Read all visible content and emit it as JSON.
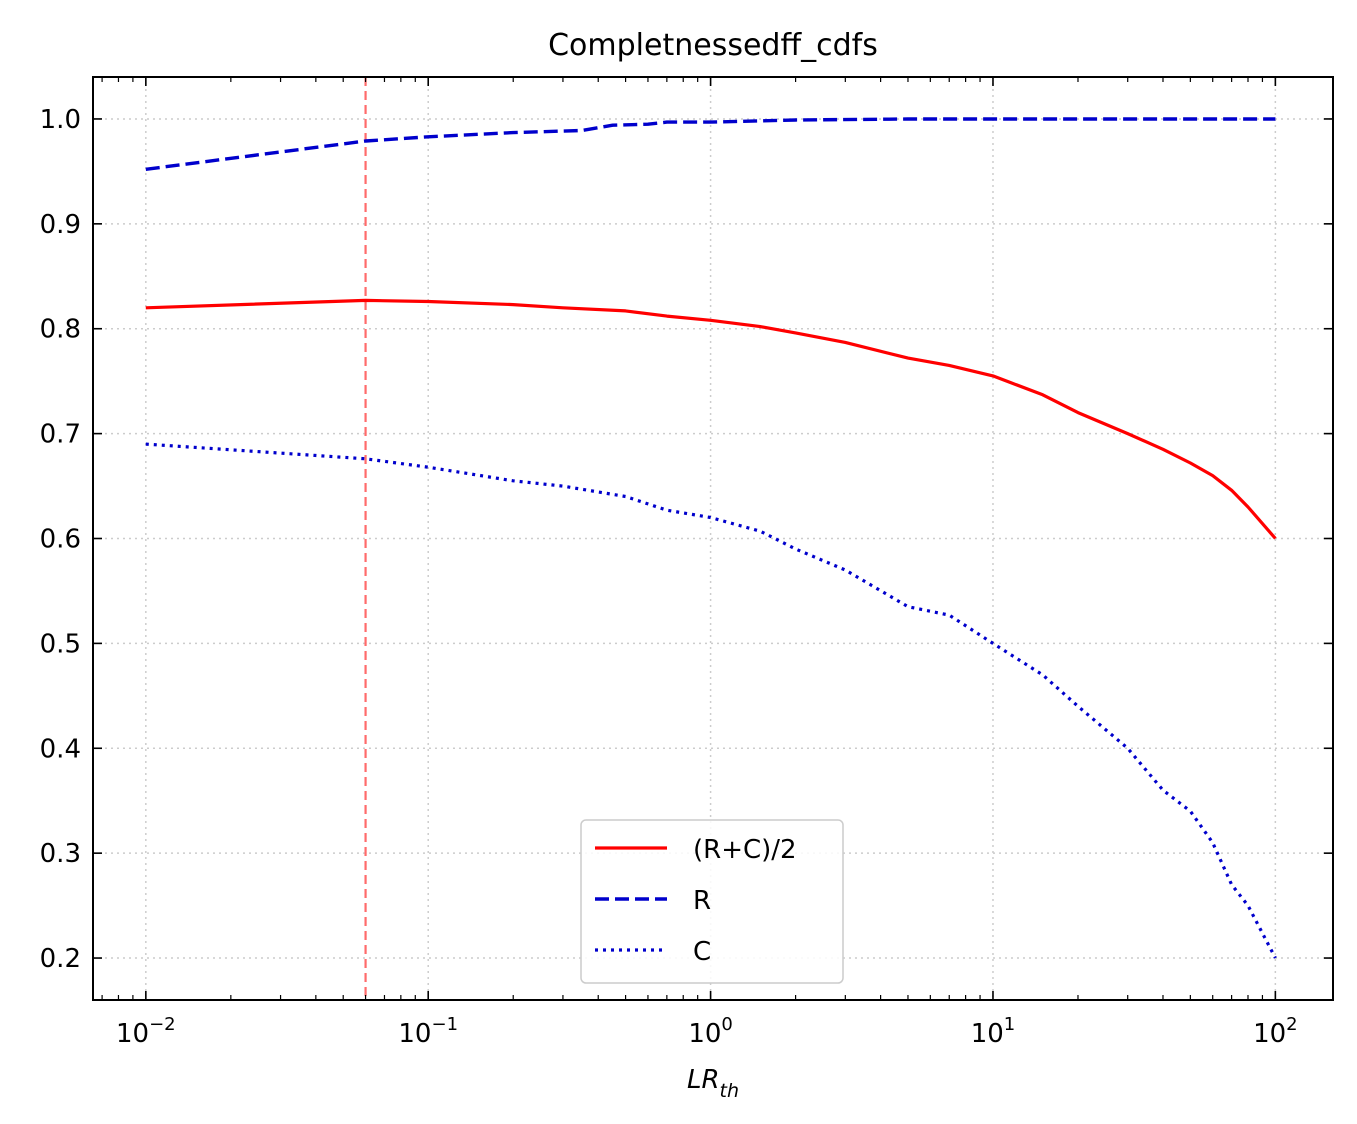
{
  "chart_data": {
    "type": "line",
    "title": "Completnessedff_cdfs",
    "xlabel": "LR",
    "xlabel_sub": "th",
    "ylabel": "",
    "xscale": "log",
    "xlim": [
      0.0065,
      160
    ],
    "ylim": [
      0.16,
      1.04
    ],
    "grid": true,
    "legend_position": "lower-center",
    "x_ticks": [
      {
        "value": 0.01,
        "base": "10",
        "exp": "−2"
      },
      {
        "value": 0.1,
        "base": "10",
        "exp": "−1"
      },
      {
        "value": 1,
        "base": "10",
        "exp": "0"
      },
      {
        "value": 10,
        "base": "10",
        "exp": "1"
      },
      {
        "value": 100,
        "base": "10",
        "exp": "2"
      }
    ],
    "y_ticks": [
      {
        "value": 0.2,
        "label": "0.2"
      },
      {
        "value": 0.3,
        "label": "0.3"
      },
      {
        "value": 0.4,
        "label": "0.4"
      },
      {
        "value": 0.5,
        "label": "0.5"
      },
      {
        "value": 0.6,
        "label": "0.6"
      },
      {
        "value": 0.7,
        "label": "0.7"
      },
      {
        "value": 0.8,
        "label": "0.8"
      },
      {
        "value": 0.9,
        "label": "0.9"
      },
      {
        "value": 1.0,
        "label": "1.0"
      }
    ],
    "vline": {
      "x": 0.06,
      "color": "#ff6b6b"
    },
    "series": [
      {
        "name": "(R+C)/2",
        "color": "#ff0000",
        "dash": "solid",
        "x": [
          0.01,
          0.06,
          0.1,
          0.2,
          0.3,
          0.5,
          0.7,
          1.0,
          1.5,
          2,
          3,
          5,
          7,
          10,
          15,
          20,
          30,
          40,
          50,
          60,
          70,
          80,
          100
        ],
        "y": [
          0.82,
          0.827,
          0.826,
          0.823,
          0.82,
          0.817,
          0.812,
          0.808,
          0.802,
          0.796,
          0.787,
          0.772,
          0.765,
          0.755,
          0.737,
          0.72,
          0.7,
          0.685,
          0.672,
          0.66,
          0.646,
          0.63,
          0.6
        ]
      },
      {
        "name": "R",
        "color": "#0000cc",
        "dash": "dashed",
        "x": [
          0.01,
          0.06,
          0.1,
          0.2,
          0.35,
          0.45,
          0.6,
          0.7,
          1.0,
          2,
          5,
          10,
          100
        ],
        "y": [
          0.952,
          0.979,
          0.983,
          0.987,
          0.989,
          0.994,
          0.995,
          0.997,
          0.997,
          0.999,
          1.0,
          1.0,
          1.0
        ]
      },
      {
        "name": "C",
        "color": "#0000cc",
        "dash": "dotted",
        "x": [
          0.01,
          0.06,
          0.1,
          0.2,
          0.3,
          0.5,
          0.7,
          1.0,
          1.5,
          2,
          3,
          5,
          7,
          10,
          15,
          20,
          30,
          40,
          50,
          60,
          70,
          80,
          100
        ],
        "y": [
          0.69,
          0.676,
          0.668,
          0.655,
          0.65,
          0.64,
          0.627,
          0.62,
          0.607,
          0.59,
          0.57,
          0.535,
          0.527,
          0.5,
          0.47,
          0.44,
          0.4,
          0.36,
          0.34,
          0.31,
          0.27,
          0.25,
          0.2
        ]
      }
    ]
  }
}
